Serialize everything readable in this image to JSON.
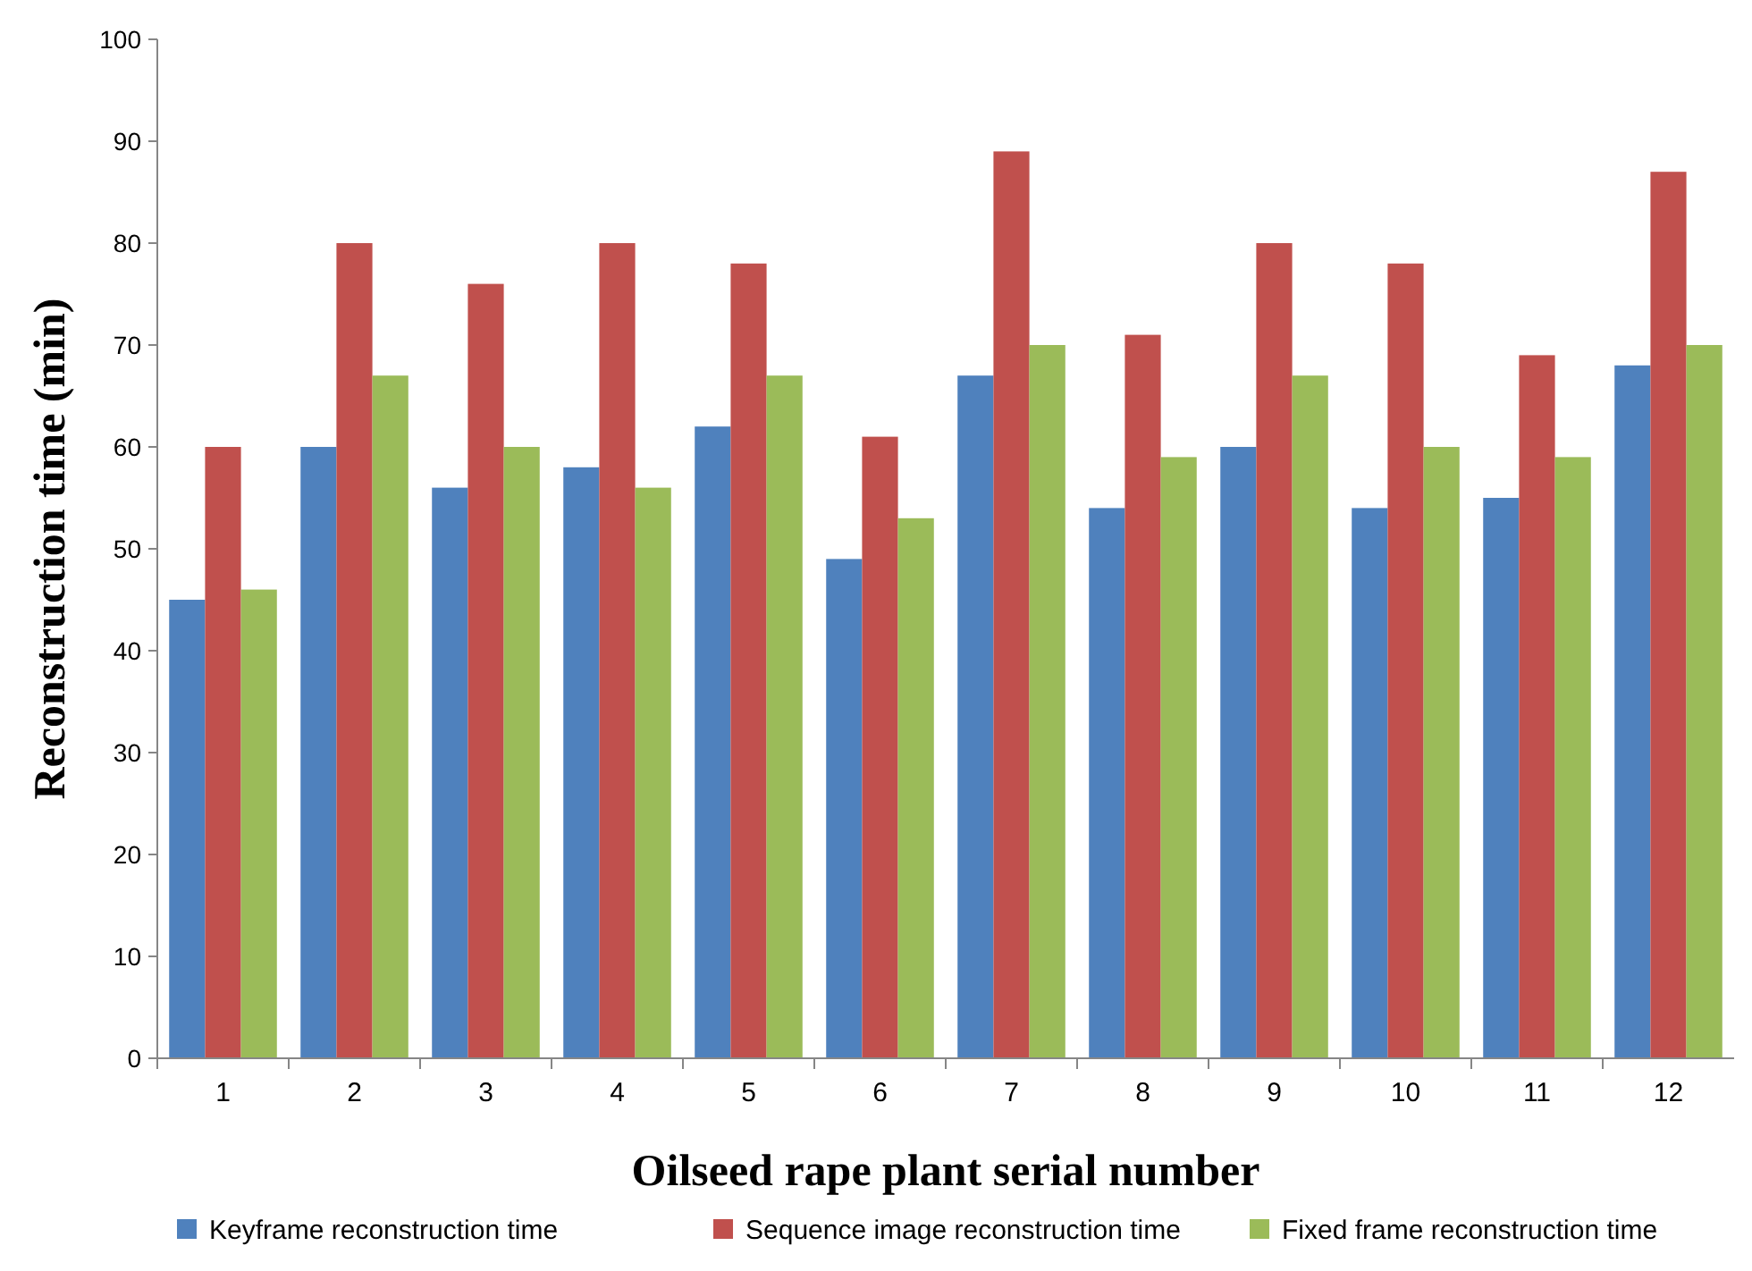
{
  "chart_data": {
    "type": "bar",
    "xlabel": "Oilseed rape plant serial number",
    "ylabel": "Reconstruction time (min)",
    "categories": [
      "1",
      "2",
      "3",
      "4",
      "5",
      "6",
      "7",
      "8",
      "9",
      "10",
      "11",
      "12"
    ],
    "series": [
      {
        "name": "Keyframe reconstruction time",
        "color": "#4f81bd",
        "values": [
          45,
          60,
          56,
          58,
          62,
          49,
          67,
          54,
          60,
          54,
          55,
          68
        ]
      },
      {
        "name": "Sequence image reconstruction time",
        "color": "#c0504d",
        "values": [
          60,
          80,
          76,
          80,
          78,
          61,
          89,
          71,
          80,
          78,
          69,
          87
        ]
      },
      {
        "name": "Fixed frame reconstruction time",
        "color": "#9bbb59",
        "values": [
          46,
          67,
          60,
          56,
          67,
          53,
          70,
          59,
          67,
          60,
          59,
          70
        ]
      }
    ],
    "ylim": [
      0,
      100
    ],
    "yticks": [
      0,
      10,
      20,
      30,
      40,
      50,
      60,
      70,
      80,
      90,
      100
    ],
    "grid": false,
    "legend": "bottom"
  }
}
